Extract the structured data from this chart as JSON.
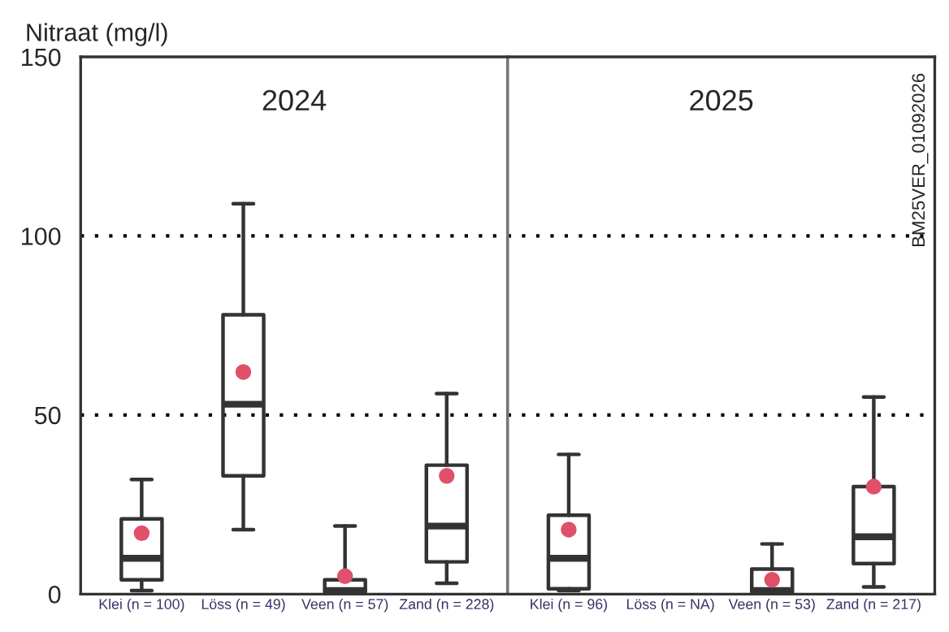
{
  "chart_data": [
    {
      "type": "box",
      "title": "2024",
      "ylabel": "Nitraat (mg/l)",
      "categories": [
        "Klei (n = 100)",
        "Löss (n = 49)",
        "Veen (n = 57)",
        "Zand (n = 228)"
      ],
      "color": "#333333",
      "boxes": [
        {
          "low": 1,
          "q1": 4,
          "median": 10,
          "q3": 21,
          "high": 32,
          "mean": 17
        },
        {
          "low": 18,
          "q1": 33,
          "median": 53,
          "q3": 78,
          "high": 109,
          "mean": 62
        },
        {
          "low": 0,
          "q1": 0.5,
          "median": 1,
          "q3": 4,
          "high": 19,
          "mean": 5
        },
        {
          "low": 3,
          "q1": 9,
          "median": 19,
          "q3": 36,
          "high": 56,
          "mean": 33
        }
      ],
      "ylim": [
        0,
        150
      ],
      "yticks": [
        0,
        50,
        100,
        150
      ],
      "grid": false,
      "ref_lines": [
        {
          "axis": "y",
          "value": 50,
          "line_style": "dotted",
          "color": "#000000"
        },
        {
          "axis": "y",
          "value": 100,
          "line_style": "dotted",
          "color": "#000000"
        }
      ]
    },
    {
      "type": "box",
      "title": "2025",
      "categories": [
        "Klei (n = 96)",
        "Löss (n = NA)",
        "Veen (n = 53)",
        "Zand (n = 217)"
      ],
      "color": "#333333",
      "boxes": [
        {
          "low": 1,
          "q1": 1.5,
          "median": 10,
          "q3": 22,
          "high": 39,
          "mean": 18
        },
        null,
        {
          "low": 0,
          "q1": 0.5,
          "median": 1,
          "q3": 7,
          "high": 14,
          "mean": 4
        },
        {
          "low": 2,
          "q1": 8.5,
          "median": 16,
          "q3": 30,
          "high": 55,
          "mean": 30
        }
      ],
      "ylim": [
        0,
        150
      ],
      "yticks": [
        0,
        50,
        100,
        150
      ],
      "grid": false,
      "tick_labels": "x",
      "annotations": [
        "BM25VER_01092026"
      ],
      "ref_lines": [
        {
          "axis": "y",
          "value": 50,
          "line_style": "dotted",
          "color": "#000000"
        },
        {
          "axis": "y",
          "value": 100,
          "line_style": "dotted",
          "color": "#000000"
        }
      ]
    }
  ]
}
